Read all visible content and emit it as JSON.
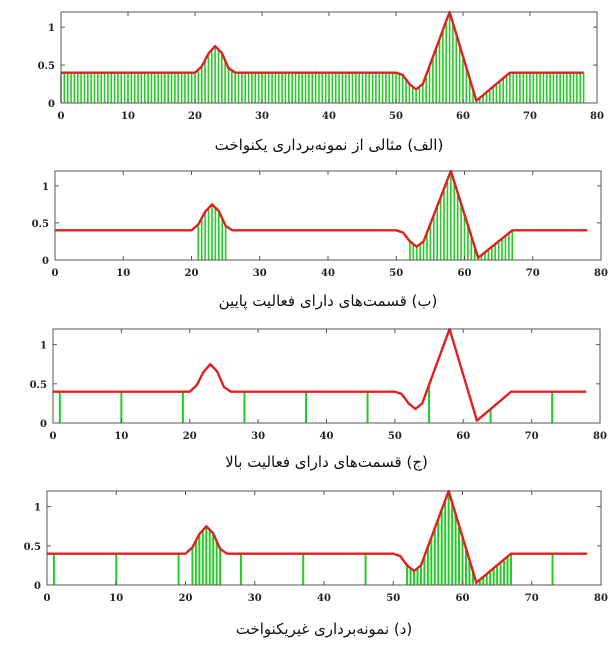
{
  "chart_data": [
    {
      "type": "line",
      "title": "(الف) مثالی از نمونه‌برداری یکنواخت",
      "xlim": [
        0,
        80
      ],
      "ylim": [
        0,
        1.2
      ],
      "x_ticks": [
        "0",
        "10",
        "20",
        "30",
        "40",
        "50",
        "60",
        "70",
        "80"
      ],
      "y_ticks": [
        "0",
        "0.5",
        "1"
      ],
      "signal_color": "#e02020",
      "sample_color": "#22cc22",
      "sampling": "uniform",
      "sample_step": 0.5,
      "sample_range": [
        0,
        78
      ]
    },
    {
      "type": "line",
      "title": "(ب) قسمت‌های دارای فعالیت پایین",
      "xlim": [
        0,
        80
      ],
      "ylim": [
        0,
        1.2
      ],
      "x_ticks": [
        "0",
        "10",
        "20",
        "30",
        "40",
        "50",
        "60",
        "70",
        "80"
      ],
      "y_ticks": [
        "0",
        "0.5",
        "1"
      ],
      "signal_color": "#e02020",
      "sample_color": "#22cc22",
      "sampling": "dense",
      "sample_step": 0.5,
      "sample_ranges": [
        [
          21,
          25
        ],
        [
          52,
          67
        ]
      ]
    },
    {
      "type": "line",
      "title": "(ج) قسمت‌های دارای فعالیت بالا",
      "xlim": [
        0,
        80
      ],
      "ylim": [
        0,
        1.2
      ],
      "x_ticks": [
        "0",
        "10",
        "20",
        "30",
        "40",
        "50",
        "60",
        "70",
        "80"
      ],
      "y_ticks": [
        "0",
        "0.5",
        "1"
      ],
      "signal_color": "#e02020",
      "sample_color": "#22cc22",
      "sampling": "sparse",
      "sample_x": [
        1,
        10,
        19,
        28,
        37,
        46,
        55,
        64,
        73
      ]
    },
    {
      "type": "line",
      "title": "(د) نمونه‌برداری غیریکنواخت",
      "xlim": [
        0,
        80
      ],
      "ylim": [
        0,
        1.2
      ],
      "x_ticks": [
        "0",
        "10",
        "20",
        "30",
        "40",
        "50",
        "60",
        "70",
        "80"
      ],
      "y_ticks": [
        "0",
        "0.5",
        "1"
      ],
      "signal_color": "#e02020",
      "sample_color": "#22cc22",
      "sampling": "non-uniform",
      "sample_x": [
        1,
        10,
        19,
        28,
        37,
        46,
        73
      ],
      "sample_step": 0.5,
      "sample_ranges": [
        [
          21,
          25
        ],
        [
          52,
          67
        ]
      ]
    }
  ],
  "signal": {
    "x": [
      0,
      20,
      21,
      22,
      23,
      24,
      25,
      26,
      50,
      51,
      52,
      53,
      54,
      58,
      62,
      67,
      78
    ],
    "y": [
      0.4,
      0.4,
      0.48,
      0.65,
      0.75,
      0.66,
      0.46,
      0.4,
      0.4,
      0.37,
      0.25,
      0.18,
      0.25,
      1.2,
      0.03,
      0.4,
      0.4
    ]
  }
}
